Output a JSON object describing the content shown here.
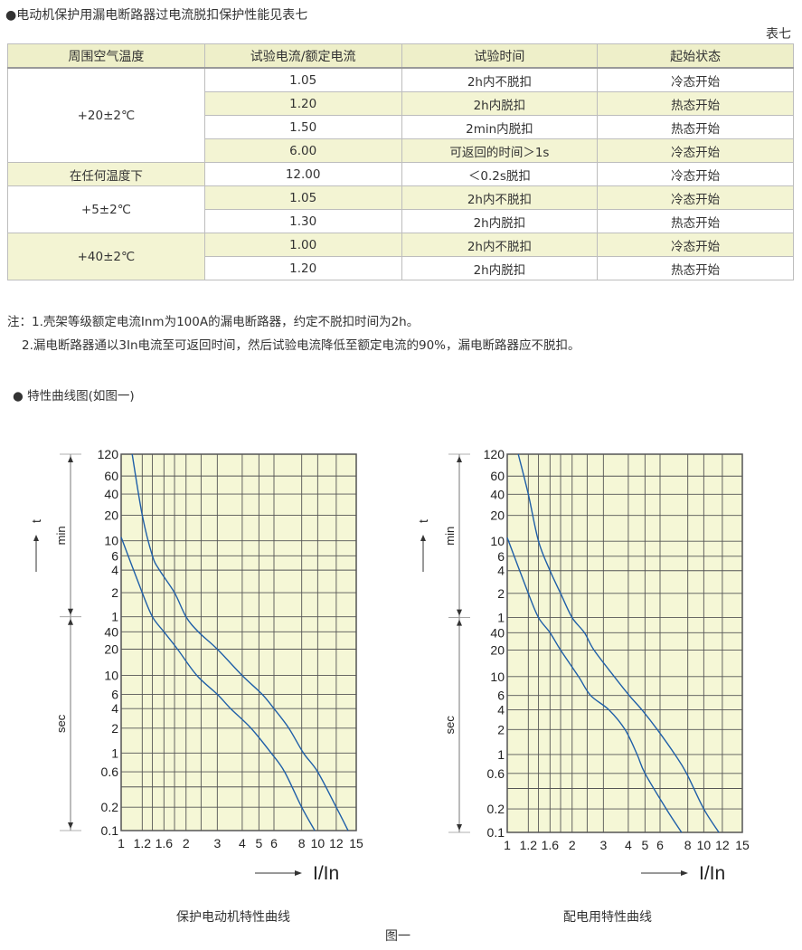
{
  "heading": "●电动机保护用漏电断路器过电流脱扣保护性能见表七",
  "table_label": "表七",
  "table": {
    "headers": [
      "周围空气温度",
      "试验电流/额定电流",
      "试验时间",
      "起始状态"
    ],
    "groups": [
      "+20±2℃",
      "在任何温度下",
      "+5±2℃",
      "+40±2℃"
    ],
    "rows": [
      [
        "1.05",
        "2h内不脱扣",
        "冷态开始"
      ],
      [
        "1.20",
        "2h内脱扣",
        "热态开始"
      ],
      [
        "1.50",
        "2min内脱扣",
        "热态开始"
      ],
      [
        "6.00",
        "可返回的时间＞1s",
        "冷态开始"
      ],
      [
        "12.00",
        "＜0.2s脱扣",
        "冷态开始"
      ],
      [
        "1.05",
        "2h内不脱扣",
        "冷态开始"
      ],
      [
        "1.30",
        "2h内脱扣",
        "热态开始"
      ],
      [
        "1.00",
        "2h内不脱扣",
        "冷态开始"
      ],
      [
        "1.20",
        "2h内脱扣",
        "热态开始"
      ]
    ]
  },
  "notes": [
    "注：1.壳架等级额定电流Inm为100A的漏电断路器，约定不脱扣时间为2h。",
    "2.漏电断路器通以3In电流至可返回时间，然后试验电流降低至额定电流的90%，漏电断路器应不脱扣。"
  ],
  "section_title": "● 特性曲线图(如图一)",
  "figure_caption": "图一",
  "colors": {
    "grid_bg": "#f5f7d6",
    "curve": "#1f5fa8",
    "grid": "#555555",
    "table_fill": "#f3f4d3"
  },
  "chart_data": [
    {
      "type": "line",
      "title": "保护电动机特性曲线",
      "xlabel": "I/In",
      "ylabel": "t",
      "y_units": [
        "min",
        "sec"
      ],
      "x_scale": "log",
      "xlim": [
        1,
        15
      ],
      "x_ticks": [
        "1",
        "1.2",
        "1.6",
        "2",
        "3",
        "4",
        "5",
        "6",
        "8",
        "10",
        "12",
        "15"
      ],
      "y_ticks_min": [
        "120",
        "60",
        "40",
        "20",
        "10",
        "6",
        "4",
        "2",
        "1"
      ],
      "y_ticks_sec": [
        "40",
        "20",
        "10",
        "6",
        "4",
        "2",
        "1",
        "0.6",
        "0.2",
        "0.1"
      ],
      "grid": true,
      "series": [
        {
          "points_I_In_vs_seconds": [
            [
              1.1,
              7200
            ],
            [
              1.2,
              1200
            ],
            [
              1.4,
              360
            ],
            [
              1.52,
              240
            ],
            [
              1.8,
              120
            ],
            [
              2.0,
              60
            ],
            [
              2.4,
              40
            ],
            [
              3,
              20
            ],
            [
              4,
              10
            ],
            [
              5.2,
              6
            ],
            [
              6,
              4
            ],
            [
              7,
              2
            ],
            [
              8.2,
              1
            ],
            [
              10,
              0.6
            ],
            [
              12,
              0.2
            ],
            [
              13.7,
              0.1
            ]
          ]
        },
        {
          "points_I_In_vs_seconds": [
            [
              1.0,
              660
            ],
            [
              1.2,
              120
            ],
            [
              1.4,
              60
            ],
            [
              1.6,
              40
            ],
            [
              1.85,
              20
            ],
            [
              2.35,
              10
            ],
            [
              3,
              6
            ],
            [
              3.5,
              4
            ],
            [
              4.5,
              2
            ],
            [
              5.8,
              1
            ],
            [
              6.7,
              0.6
            ],
            [
              8,
              0.2
            ],
            [
              9.6,
              0.1
            ]
          ]
        }
      ]
    },
    {
      "type": "line",
      "title": "配电用特性曲线",
      "xlabel": "I/In",
      "ylabel": "t",
      "y_units": [
        "min",
        "sec"
      ],
      "x_scale": "log",
      "xlim": [
        1,
        15
      ],
      "x_ticks": [
        "1",
        "1.2",
        "1.6",
        "2",
        "3",
        "4",
        "5",
        "6",
        "8",
        "10",
        "12",
        "15"
      ],
      "y_ticks_min": [
        "120",
        "60",
        "40",
        "20",
        "10",
        "6",
        "4",
        "2",
        "1"
      ],
      "y_ticks_sec": [
        "40",
        "20",
        "10",
        "6",
        "4",
        "2",
        "1",
        "0.6",
        "0.2",
        "0.1"
      ],
      "grid": true,
      "series": [
        {
          "points_I_In_vs_seconds": [
            [
              1.1,
              7200
            ],
            [
              1.2,
              2400
            ],
            [
              1.4,
              600
            ],
            [
              1.6,
              240
            ],
            [
              1.8,
              120
            ],
            [
              2.0,
              60
            ],
            [
              2.4,
              40
            ],
            [
              2.7,
              20
            ],
            [
              3.4,
              10
            ],
            [
              4.05,
              6
            ],
            [
              4.8,
              4
            ],
            [
              5.8,
              2
            ],
            [
              7,
              1
            ],
            [
              7.9,
              0.6
            ],
            [
              10,
              0.2
            ],
            [
              11.6,
              0.1
            ]
          ]
        },
        {
          "points_I_In_vs_seconds": [
            [
              1.0,
              660
            ],
            [
              1.2,
              120
            ],
            [
              1.4,
              60
            ],
            [
              1.6,
              40
            ],
            [
              1.8,
              20
            ],
            [
              2.2,
              10
            ],
            [
              2.6,
              6
            ],
            [
              3.2,
              4
            ],
            [
              3.85,
              2
            ],
            [
              4.5,
              1
            ],
            [
              5.0,
              0.6
            ],
            [
              6.4,
              0.2
            ],
            [
              7.5,
              0.1
            ]
          ]
        }
      ]
    }
  ]
}
